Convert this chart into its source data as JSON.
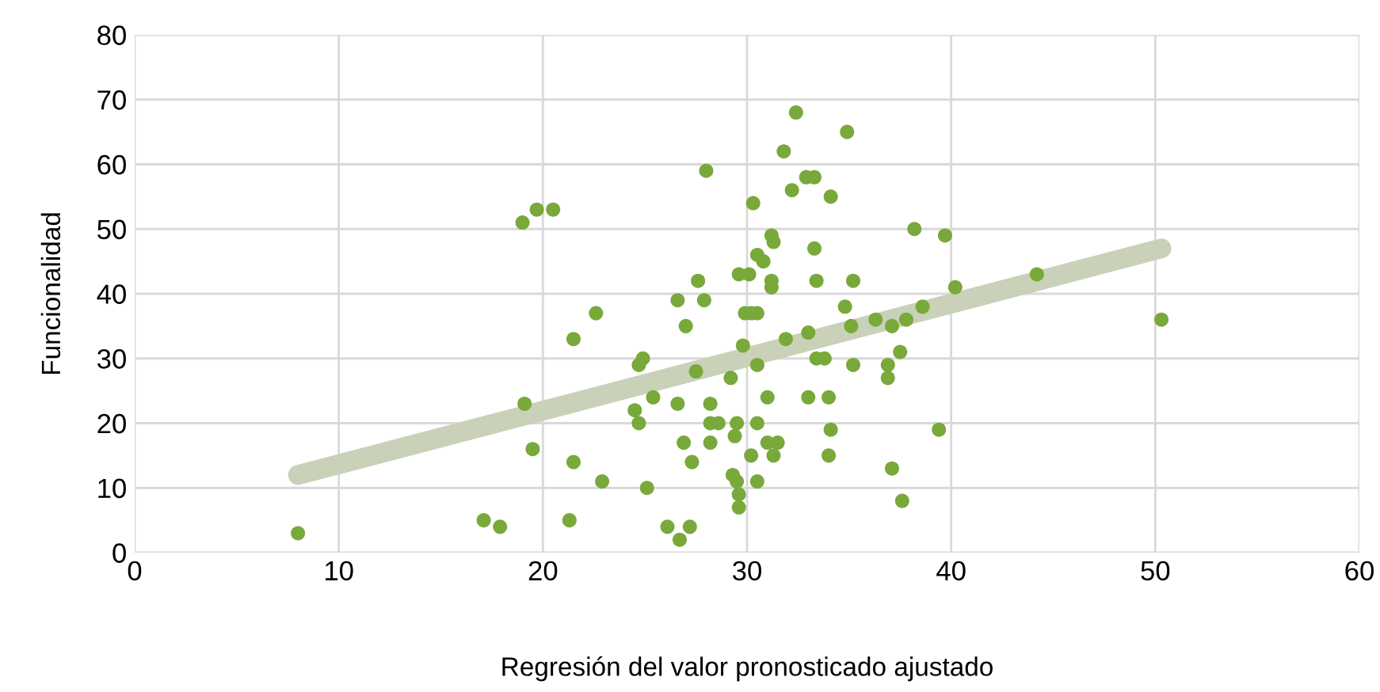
{
  "chart_data": {
    "type": "scatter",
    "xlabel": "Regresión del valor pronosticado ajustado",
    "ylabel": "Funcionalidad",
    "xlim": [
      0,
      60
    ],
    "xticks": [
      0,
      10,
      20,
      30,
      40,
      50,
      60
    ],
    "ylim": [
      0,
      80
    ],
    "yticks": [
      0,
      10,
      20,
      30,
      40,
      50,
      60,
      70,
      80
    ],
    "grid": true,
    "marker": "circle",
    "series": [
      {
        "color": "#78a93a",
        "x": [
          8.0,
          17.1,
          17.9,
          19.0,
          19.1,
          19.5,
          19.7,
          20.5,
          21.3,
          21.5,
          21.5,
          22.6,
          22.9,
          24.5,
          24.7,
          24.7,
          24.9,
          25.1,
          25.4,
          26.1,
          26.6,
          26.6,
          26.7,
          26.9,
          27.0,
          27.2,
          27.3,
          27.5,
          27.6,
          27.9,
          28.0,
          28.2,
          28.2,
          28.2,
          28.6,
          29.2,
          29.3,
          29.4,
          29.5,
          29.5,
          29.6,
          29.6,
          29.6,
          29.8,
          29.9,
          30.1,
          30.2,
          30.3,
          30.2,
          30.5,
          30.5,
          30.5,
          30.5,
          30.5,
          30.8,
          31.0,
          31.0,
          31.2,
          31.2,
          31.2,
          31.3,
          31.3,
          31.5,
          31.8,
          31.9,
          32.2,
          32.4,
          32.9,
          33.0,
          33.0,
          33.3,
          33.3,
          33.4,
          33.4,
          33.8,
          34.0,
          34.0,
          34.1,
          34.1,
          34.9,
          34.8,
          35.1,
          35.2,
          35.2,
          36.3,
          36.9,
          36.9,
          37.1,
          37.1,
          37.5,
          37.6,
          37.8,
          38.2,
          38.6,
          39.4,
          39.7,
          40.2,
          44.2,
          50.3
        ],
        "values": [
          3,
          5,
          4,
          51,
          23,
          16,
          53,
          53,
          5,
          14,
          33,
          37,
          11,
          22,
          20,
          29,
          30,
          10,
          24,
          4,
          39,
          23,
          2,
          17,
          35,
          4,
          14,
          28,
          42,
          39,
          59,
          23,
          20,
          17,
          20,
          27,
          12,
          18,
          20,
          11,
          43,
          9,
          7,
          32,
          37,
          43,
          37,
          54,
          15,
          46,
          37,
          29,
          20,
          11,
          45,
          24,
          17,
          42,
          41,
          49,
          48,
          15,
          17,
          62,
          33,
          56,
          68,
          58,
          34,
          24,
          47,
          58,
          42,
          30,
          30,
          24,
          15,
          19,
          55,
          65,
          38,
          35,
          42,
          29,
          36,
          29,
          27,
          13,
          35,
          31,
          8,
          36,
          50,
          38,
          19,
          49,
          41,
          43,
          36
        ]
      },
      {
        "type": "line",
        "color": "#c9d1b9",
        "marker": "none",
        "x": [
          8.0,
          50.3
        ],
        "values": [
          12,
          47
        ]
      }
    ]
  }
}
